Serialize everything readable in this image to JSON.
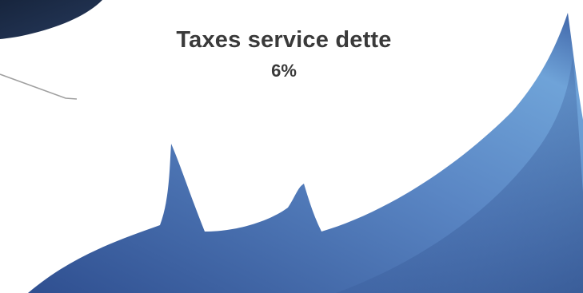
{
  "chart_data": {
    "type": "pie",
    "slices": [
      {
        "label": "Taxes service dette",
        "value": 6,
        "value_label": "6%"
      }
    ],
    "colors": {
      "dark_slice": "#1f3150",
      "wave_light": "#6fa3d8",
      "wave_mid": "#4a72b4",
      "wave_dark": "#2f4f90",
      "leader_line": "#a0a0a0",
      "label_text": "#3a3a3a"
    }
  }
}
